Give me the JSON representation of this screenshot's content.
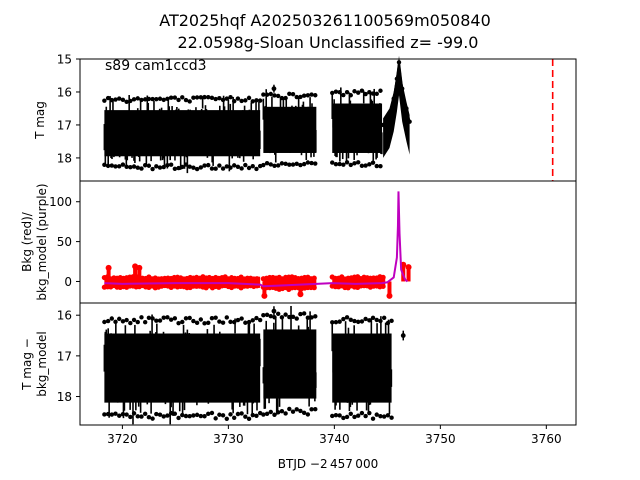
{
  "title": {
    "line1": "AT2025hqf  A202503261100569m050840",
    "line2": "22.0598g-Sloan Unclassified z= -99.0"
  },
  "annotation": "s89 cam1ccd3",
  "xlabel": "BTJD −2 457 000",
  "colors": {
    "data": "#000000",
    "background": "#ff0000",
    "model": "#bf00bf",
    "marker_line": "#ff0000"
  },
  "chart_data": [
    {
      "type": "scatter",
      "panel": "top",
      "ylabel": "T mag",
      "ylim": [
        18.7,
        15.0
      ],
      "yticks": [
        15,
        16,
        17,
        18
      ],
      "xlim": [
        3716.0,
        3762.8
      ],
      "vline_x": 3760.6,
      "segments": [
        {
          "x": [
            3718.3,
            3733.0
          ],
          "low": 16.3,
          "high": 18.2
        },
        {
          "x": [
            3733.3,
            3738.3
          ],
          "low": 16.2,
          "high": 18.1
        },
        {
          "x": [
            3739.8,
            3744.5
          ],
          "low": 16.1,
          "high": 18.1
        }
      ],
      "outliers": [
        {
          "x": 3734.3,
          "y": 15.9
        }
      ],
      "flare": {
        "x": [
          3744.6,
          3745.2,
          3745.6,
          3745.9,
          3746.1,
          3746.4,
          3746.8,
          3747.1
        ],
        "y": [
          17.0,
          16.7,
          16.2,
          15.6,
          15.1,
          15.9,
          16.5,
          16.9
        ]
      },
      "grid": false
    },
    {
      "type": "line",
      "panel": "middle",
      "ylabel": "Bkg (red)/\nbkg_model (purple)",
      "ylim": [
        -27,
        126
      ],
      "yticks": [
        0,
        50,
        100
      ],
      "xlim": [
        3716.0,
        3762.8
      ],
      "series": [
        {
          "role": "background",
          "segments": [
            {
              "x": [
                3718.3,
                3733.0
              ],
              "low": -8,
              "high": 6
            },
            {
              "x": [
                3733.3,
                3738.3
              ],
              "low": -10,
              "high": 6
            },
            {
              "x": [
                3739.8,
                3744.8
              ],
              "low": -8,
              "high": 6
            }
          ],
          "spikes": [
            {
              "x": 3718.7,
              "y": 17
            },
            {
              "x": 3721.2,
              "y": 19
            },
            {
              "x": 3721.6,
              "y": 17
            },
            {
              "x": 3733.4,
              "y": -18
            },
            {
              "x": 3736.8,
              "y": -16
            },
            {
              "x": 3745.2,
              "y": -18
            },
            {
              "x": 3746.5,
              "y": 21
            },
            {
              "x": 3747.0,
              "y": 18
            }
          ]
        },
        {
          "role": "model",
          "x": [
            3718.3,
            3720,
            3725,
            3730,
            3733.0,
            3733.3,
            3735,
            3738.3,
            3739.8,
            3742,
            3744.5,
            3745.0,
            3745.6,
            3745.9,
            3746.0,
            3746.05,
            3746.15,
            3746.3,
            3746.5,
            3746.7,
            3746.9
          ],
          "y": [
            -2,
            -3,
            -2,
            -2,
            -4,
            -6,
            -5,
            -3,
            -2,
            -3,
            -2,
            -1,
            5,
            30,
            70,
            113,
            60,
            15,
            8,
            2,
            0
          ]
        }
      ],
      "grid": false
    },
    {
      "type": "scatter",
      "panel": "bottom",
      "ylabel": "T mag −\nbkg_model",
      "ylim": [
        18.7,
        15.7
      ],
      "yticks": [
        16,
        17,
        18
      ],
      "xlim": [
        3716.0,
        3762.8
      ],
      "xticks": [
        3720,
        3730,
        3740,
        3750,
        3760
      ],
      "segments": [
        {
          "x": [
            3718.3,
            3733.0
          ],
          "low": 16.2,
          "high": 18.4
        },
        {
          "x": [
            3733.3,
            3738.3
          ],
          "low": 16.1,
          "high": 18.3
        },
        {
          "x": [
            3739.8,
            3745.4
          ],
          "low": 16.2,
          "high": 18.4
        }
      ],
      "outliers": [
        {
          "x": 3734.3,
          "y": 15.9
        },
        {
          "x": 3746.5,
          "y": 16.5
        }
      ],
      "grid": false
    }
  ]
}
